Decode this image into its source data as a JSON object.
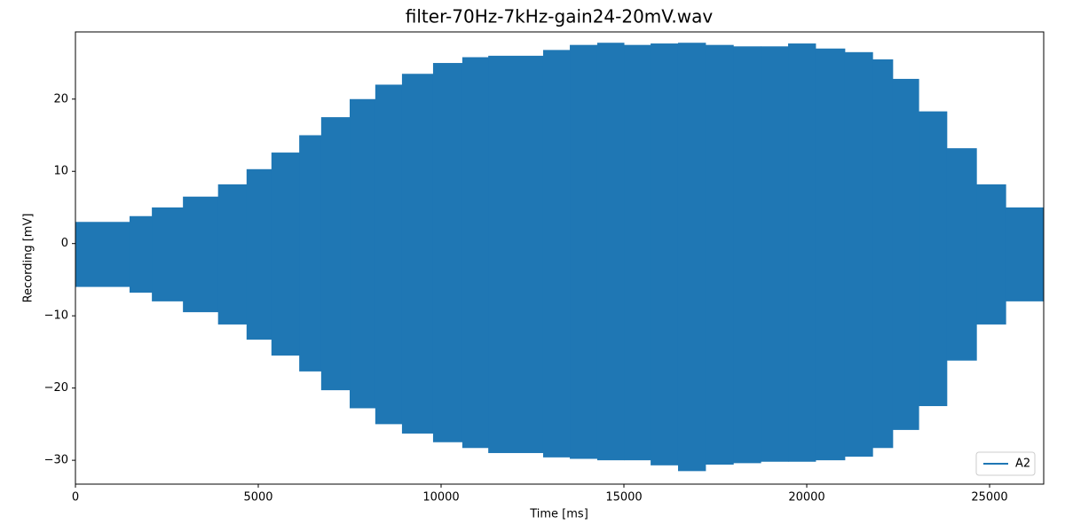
{
  "chart_data": {
    "type": "envelope",
    "title": "filter-70Hz-7kHz-gain24-20mV.wav",
    "x_label": "Time [ms]",
    "y_label": "Recording [mV]",
    "bins": [
      0,
      1480,
      2090,
      2940,
      3900,
      4680,
      5360,
      6120,
      6720,
      7500,
      8200,
      8930,
      9780,
      10580,
      11290,
      12790,
      13520,
      14270,
      15000,
      15730,
      16480,
      17230,
      17990,
      18740,
      19490,
      20240,
      21040,
      21800,
      22350,
      23060,
      23830,
      24640,
      25440,
      26480
    ],
    "series": [
      {
        "name": "A2",
        "color": "#1f77b4",
        "max": [
          3,
          3.8,
          5,
          6.5,
          8.2,
          10.3,
          12.6,
          15,
          17.5,
          20,
          22,
          23.5,
          25,
          25.8,
          26,
          26.8,
          27.5,
          27.8,
          27.5,
          27.7,
          27.8,
          27.5,
          27.3,
          27.3,
          27.7,
          27,
          26.5,
          25.5,
          22.8,
          18.3,
          13.2,
          8.2,
          5
        ],
        "min": [
          -6,
          -6.8,
          -8,
          -9.5,
          -11.2,
          -13.3,
          -15.5,
          -17.7,
          -20.3,
          -22.8,
          -25,
          -26.3,
          -27.5,
          -28.3,
          -29,
          -29.6,
          -29.8,
          -30,
          -30,
          -30.7,
          -31.5,
          -30.6,
          -30.4,
          -30.2,
          -30.2,
          -30,
          -29.5,
          -28.3,
          -25.8,
          -22.5,
          -16.2,
          -11.2,
          -8
        ]
      }
    ],
    "xlim": [
      0,
      26480
    ],
    "xticks": [
      0,
      5000,
      10000,
      15000,
      20000,
      25000
    ],
    "ylim": [
      -33.3,
      29.3
    ],
    "yticks": [
      {
        "value": -30,
        "label": "−30"
      },
      {
        "value": -20,
        "label": "−20"
      },
      {
        "value": -10,
        "label": "−10"
      },
      0,
      10,
      20
    ],
    "legend": "lower right"
  }
}
